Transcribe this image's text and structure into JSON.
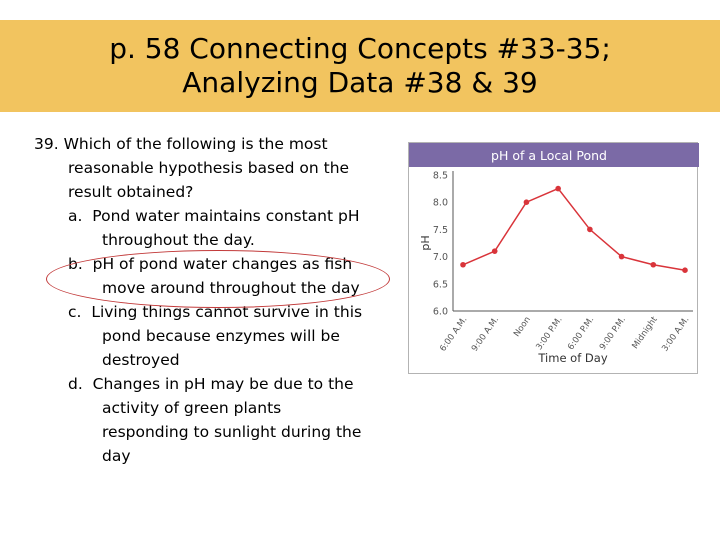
{
  "slide": {
    "title_line1": "p. 58 Connecting Concepts #33-35;",
    "title_line2": "Analyzing Data #38 & 39"
  },
  "question": {
    "stem": [
      "39.  Which of the following is the most",
      "reasonable hypothesis based on the",
      "result obtained?"
    ],
    "options": [
      {
        "letter": "a.",
        "lines": [
          "Pond water maintains constant pH",
          "throughout the day."
        ]
      },
      {
        "letter": "b.",
        "lines": [
          "pH of pond water changes as fish",
          "move around throughout the day"
        ]
      },
      {
        "letter": "c.",
        "lines": [
          "Living things cannot survive in this",
          "pond because enzymes will be",
          "destroyed"
        ]
      },
      {
        "letter": "d.",
        "lines": [
          "Changes in pH may be due to the",
          "activity of green plants",
          "responding to sunlight during the",
          "day"
        ]
      }
    ],
    "circled_option": "b"
  },
  "colors": {
    "title_band": "#f2c45f",
    "chart_header": "#7b6aa6",
    "series_line": "#d9343a",
    "circle": "#c23a3a"
  },
  "chart_data": {
    "type": "line",
    "title": "pH of a Local Pond",
    "xlabel": "Time of Day",
    "ylabel": "pH",
    "ylim": [
      6.0,
      8.5
    ],
    "yticks": [
      "8.5",
      "8.0",
      "7.5",
      "7.0",
      "6.5",
      "6.0"
    ],
    "categories": [
      "6:00 A.M.",
      "9:00 A.M.",
      "Noon",
      "3:00 P.M.",
      "6:00 P.M.",
      "9:00 P.M.",
      "Midnight",
      "3:00 A.M."
    ],
    "series": [
      {
        "values": [
          6.85,
          7.1,
          8.0,
          8.25,
          7.5,
          7.0,
          6.85,
          6.75
        ]
      }
    ],
    "grid": false,
    "legend": "none"
  }
}
